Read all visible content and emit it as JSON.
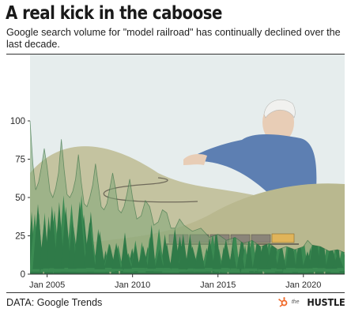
{
  "header": {
    "title": "A real kick in the caboose",
    "subtitle": "Google search volume for \"model railroad\" has continually declined over the last decade."
  },
  "footer": {
    "source": "DATA: Google Trends",
    "brand_prefix": "the",
    "brand": "HUSTLE"
  },
  "colors": {
    "sky": "#e6eded",
    "mountain": "#c4c3a0",
    "hill": "#b9b88f",
    "tree": "#2f7a48",
    "shirt": "#5d7fb2",
    "skin": "#e8cdb6",
    "train": "#8a8479",
    "locomotive": "#e0b45a",
    "logo": "#f06a2a"
  },
  "icons": {
    "logo_mark": "hubspot-sprocket-icon",
    "illustration": "grandpa-with-model-train-illustration"
  },
  "chart_data": {
    "type": "area",
    "title": "A real kick in the caboose",
    "subtitle": "Google search volume for \"model railroad\" has continually declined over the last decade.",
    "xlabel": "",
    "ylabel": "",
    "ylim": [
      0,
      100
    ],
    "yticks": [
      0,
      25,
      50,
      75,
      100
    ],
    "xticks": [
      "Jan 2005",
      "Jan 2010",
      "Jan 2015",
      "Jan 2020"
    ],
    "xlim": [
      "2004-01",
      "2022-06"
    ],
    "grid": false,
    "series": [
      {
        "x": [
          "2004-01",
          "2004-03",
          "2004-05",
          "2004-07",
          "2004-09",
          "2004-11",
          "2005-01",
          "2005-03",
          "2005-05",
          "2005-07",
          "2005-09",
          "2005-11",
          "2006-01",
          "2006-03",
          "2006-05",
          "2006-07",
          "2006-09",
          "2006-11",
          "2007-01",
          "2007-03",
          "2007-05",
          "2007-07",
          "2007-09",
          "2007-11",
          "2008-01",
          "2008-03",
          "2008-05",
          "2008-07",
          "2008-09",
          "2008-11",
          "2009-01",
          "2009-03",
          "2009-05",
          "2009-07",
          "2009-09",
          "2009-11",
          "2010-01",
          "2010-04",
          "2010-07",
          "2010-10",
          "2011-01",
          "2011-04",
          "2011-07",
          "2011-10",
          "2012-01",
          "2012-04",
          "2012-07",
          "2012-10",
          "2013-01",
          "2013-07",
          "2014-01",
          "2014-07",
          "2015-01",
          "2015-07",
          "2016-01",
          "2016-07",
          "2017-01",
          "2017-07",
          "2018-01",
          "2018-07",
          "2019-01",
          "2019-07",
          "2020-01",
          "2020-04",
          "2020-07",
          "2021-01",
          "2021-07",
          "2022-01",
          "2022-06"
        ],
        "values": [
          100,
          72,
          55,
          60,
          70,
          82,
          70,
          54,
          50,
          56,
          66,
          88,
          68,
          52,
          50,
          54,
          62,
          78,
          60,
          46,
          44,
          50,
          58,
          72,
          58,
          44,
          42,
          46,
          56,
          66,
          56,
          42,
          40,
          44,
          52,
          62,
          50,
          36,
          38,
          48,
          44,
          32,
          34,
          42,
          40,
          30,
          30,
          36,
          32,
          28,
          30,
          24,
          26,
          22,
          24,
          20,
          22,
          18,
          20,
          16,
          18,
          16,
          18,
          22,
          19,
          18,
          15,
          16,
          14
        ]
      }
    ],
    "annotations": []
  }
}
